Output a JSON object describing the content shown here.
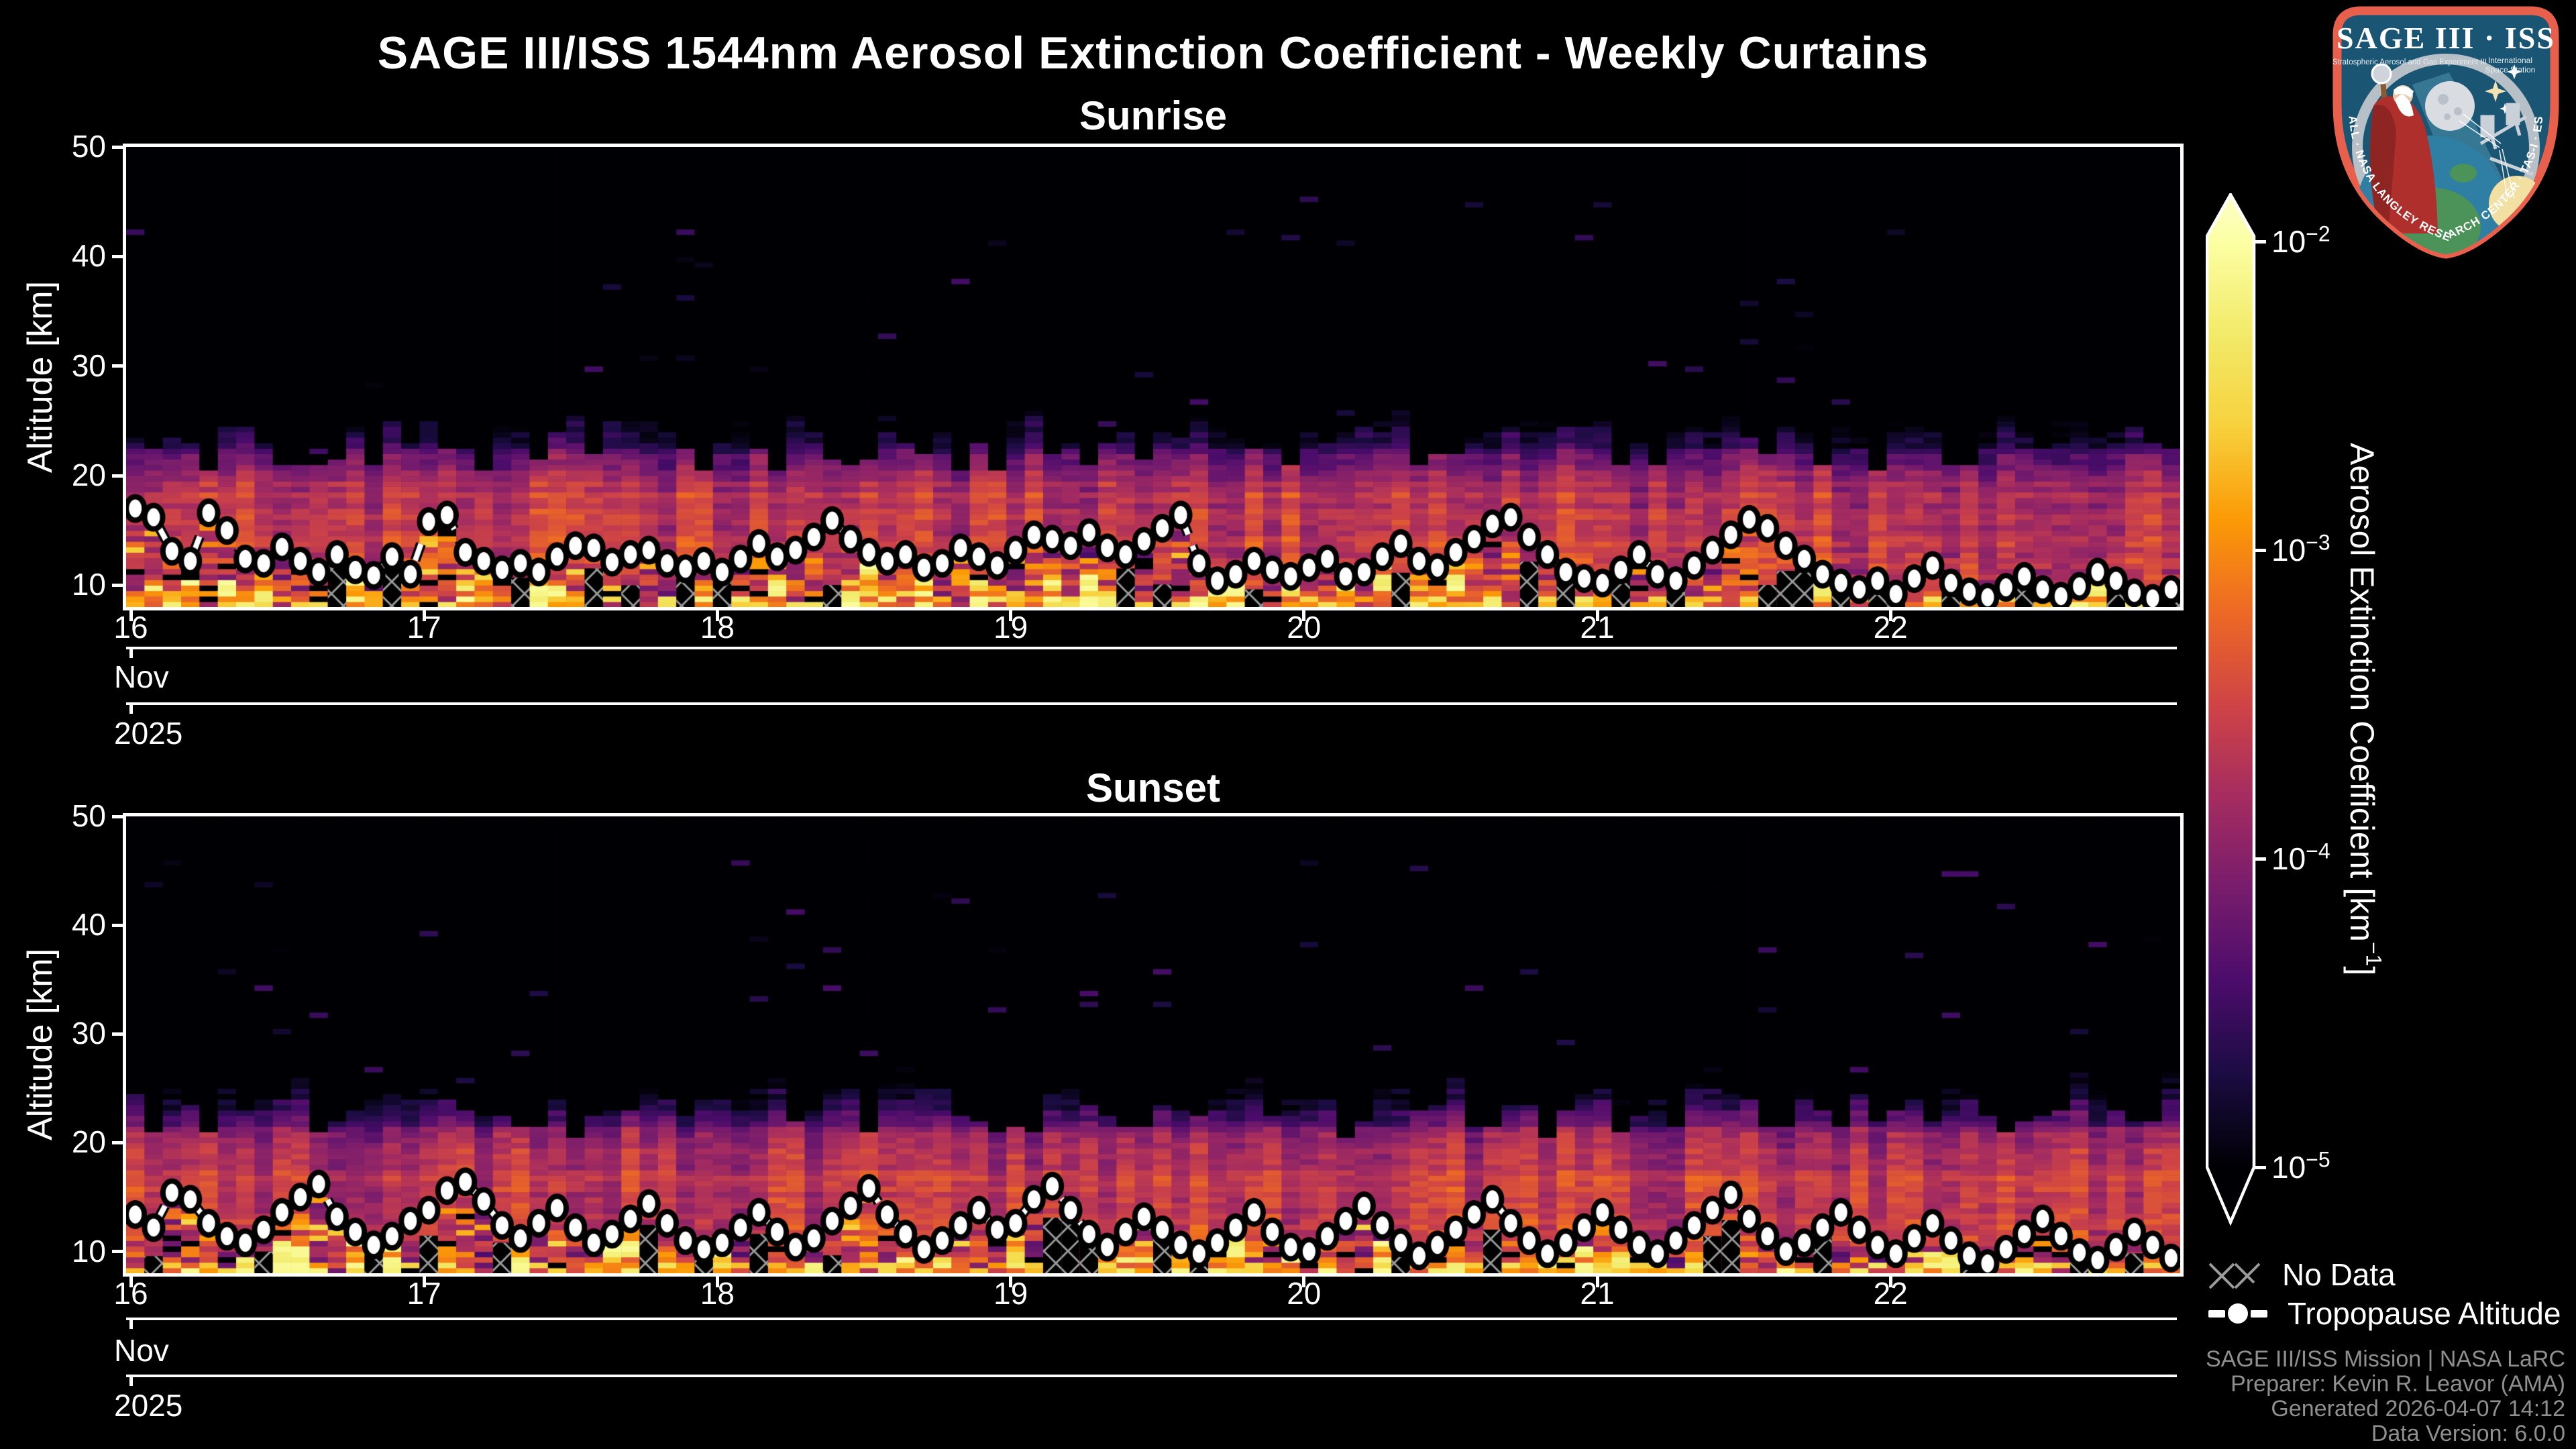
{
  "title": "SAGE III/ISS 1544nm Aerosol Extinction Coefficient - Weekly Curtains",
  "panels": [
    {
      "title": "Sunrise"
    },
    {
      "title": "Sunset"
    }
  ],
  "axes": {
    "y_label": "Altitude [km]",
    "y_ticks": [
      50,
      40,
      30,
      20,
      10
    ],
    "x_ticks": [
      "16",
      "17",
      "18",
      "19",
      "20",
      "21",
      "22"
    ],
    "month": "Nov",
    "year": "2025"
  },
  "colorbar": {
    "label_prefix": "Aerosol Extinction Coefficient [km",
    "label_sup": "−1",
    "label_suffix": "]",
    "ticks": [
      {
        "base": "10",
        "exp": -2
      },
      {
        "base": "10",
        "exp": -3
      },
      {
        "base": "10",
        "exp": -4
      },
      {
        "base": "10",
        "exp": -5
      }
    ]
  },
  "legend": {
    "no_data": "No Data",
    "tropopause": "Tropopause Altitude"
  },
  "attribution": {
    "lines": [
      "SAGE III/ISS Mission | NASA LaRC",
      "Preparer: Kevin R. Leavor (AMA)",
      "Generated 2026-04-07 14:12",
      "Data Version: 6.0.0"
    ]
  },
  "logo": {
    "title": "SAGE III · ISS",
    "subtitle_left": "Stratospheric Aerosol and Gas Experiment III",
    "subtitle_right_1": "International",
    "subtitle_right_2": "Space Station",
    "ring_text": "BALL · NASA LANGLEY RESEARCH CENTER · TAS-I · ESA"
  },
  "colors": {
    "background": "#000000",
    "spine": "#ffffff",
    "text": "#ffffff",
    "attribution_text": "#8f8f8f",
    "hatch": "#9a9a9a",
    "logo_border": "#e8604c",
    "logo_field": "#1a5674",
    "colormap_stops": [
      [
        0.0,
        "#000004"
      ],
      [
        0.1,
        "#1b0c42"
      ],
      [
        0.2,
        "#4b0c6b"
      ],
      [
        0.3,
        "#781c6d"
      ],
      [
        0.4,
        "#a52c60"
      ],
      [
        0.5,
        "#cf4446"
      ],
      [
        0.6,
        "#ed6925"
      ],
      [
        0.7,
        "#fb9a06"
      ],
      [
        0.8,
        "#f7d13d"
      ],
      [
        0.9,
        "#f2ea69"
      ],
      [
        1.0,
        "#fcffa4"
      ]
    ]
  },
  "chart_data": [
    {
      "type": "heatmap",
      "title": "Sunrise",
      "xlabel_days": [
        "16",
        "17",
        "18",
        "19",
        "20",
        "21",
        "22"
      ],
      "x_month": "Nov",
      "x_year": "2025",
      "ylabel": "Altitude [km]",
      "y_range_km": [
        8,
        50
      ],
      "columns_per_day": 16,
      "color_scale": {
        "type": "log",
        "vmin": 1e-05,
        "vmax": 0.01,
        "colormap": "inferno",
        "label": "Aerosol Extinction Coefficient [km^-1]",
        "extend": "both"
      },
      "profile_log10_by_alt_km": [
        [
          8,
          -3.55
        ],
        [
          10,
          -3.6
        ],
        [
          13,
          -3.6
        ],
        [
          16,
          -3.62
        ],
        [
          19,
          -3.7
        ],
        [
          20,
          -3.82
        ],
        [
          21,
          -4.0
        ],
        [
          22,
          -4.3
        ],
        [
          23,
          -4.55
        ],
        [
          24,
          -4.8
        ],
        [
          25,
          -5.0
        ],
        [
          26,
          -5.15
        ],
        [
          28,
          -5.35
        ],
        [
          50,
          -5.45
        ]
      ],
      "no_data_hatch": true,
      "tropopause_altitude_km": [
        17.0,
        16.2,
        13.1,
        12.2,
        16.6,
        15.0,
        12.4,
        12.0,
        13.5,
        12.2,
        11.2,
        12.8,
        11.4,
        10.9,
        12.6,
        11.0,
        15.8,
        16.4,
        13.0,
        12.2,
        11.4,
        12.0,
        11.2,
        12.6,
        13.6,
        13.4,
        12.1,
        12.8,
        13.2,
        12.0,
        11.5,
        12.2,
        11.2,
        12.4,
        13.8,
        12.6,
        13.2,
        14.4,
        15.9,
        14.2,
        13.0,
        12.2,
        12.8,
        11.6,
        12.0,
        13.4,
        12.6,
        11.8,
        13.2,
        14.6,
        14.2,
        13.6,
        14.8,
        13.4,
        12.8,
        14.0,
        15.2,
        16.4,
        12.0,
        10.4,
        11.0,
        12.2,
        11.4,
        10.8,
        11.6,
        12.4,
        10.8,
        11.2,
        12.6,
        13.8,
        12.2,
        11.6,
        13.0,
        14.2,
        15.6,
        16.2,
        14.4,
        12.8,
        11.2,
        10.6,
        10.2,
        11.4,
        12.8,
        11.0,
        10.4,
        11.8,
        13.2,
        14.6,
        16.0,
        15.2,
        13.6,
        12.4,
        11.0,
        10.2,
        9.6,
        10.4,
        9.2,
        10.6,
        11.8,
        10.2,
        9.4,
        8.9,
        9.8,
        10.8,
        9.6,
        9.0,
        9.9,
        11.2,
        10.4,
        9.3,
        8.8,
        9.6
      ]
    },
    {
      "type": "heatmap",
      "title": "Sunset",
      "xlabel_days": [
        "16",
        "17",
        "18",
        "19",
        "20",
        "21",
        "22"
      ],
      "x_month": "Nov",
      "x_year": "2025",
      "ylabel": "Altitude [km]",
      "y_range_km": [
        8,
        50
      ],
      "columns_per_day": 16,
      "color_scale": {
        "type": "log",
        "vmin": 1e-05,
        "vmax": 0.01,
        "colormap": "inferno",
        "label": "Aerosol Extinction Coefficient [km^-1]",
        "extend": "both"
      },
      "profile_log10_by_alt_km": [
        [
          8,
          -3.55
        ],
        [
          10,
          -3.6
        ],
        [
          13,
          -3.6
        ],
        [
          16,
          -3.62
        ],
        [
          19,
          -3.7
        ],
        [
          20,
          -3.82
        ],
        [
          21,
          -4.0
        ],
        [
          22,
          -4.3
        ],
        [
          23,
          -4.55
        ],
        [
          24,
          -4.8
        ],
        [
          25,
          -5.0
        ],
        [
          26,
          -5.15
        ],
        [
          28,
          -5.35
        ],
        [
          50,
          -5.45
        ]
      ],
      "no_data_hatch": true,
      "tropopause_altitude_km": [
        13.4,
        12.2,
        15.4,
        14.8,
        12.6,
        11.4,
        10.8,
        12.0,
        13.6,
        15.0,
        16.2,
        13.2,
        11.8,
        10.6,
        11.4,
        12.8,
        13.8,
        15.6,
        16.4,
        14.6,
        12.4,
        11.2,
        12.6,
        14.0,
        12.2,
        10.8,
        11.6,
        13.0,
        14.4,
        12.6,
        11.0,
        10.2,
        10.8,
        12.2,
        13.6,
        11.8,
        10.4,
        11.2,
        12.8,
        14.2,
        15.8,
        13.4,
        11.6,
        10.2,
        11.0,
        12.4,
        13.8,
        12.0,
        12.6,
        14.8,
        16.0,
        13.8,
        11.6,
        10.4,
        11.8,
        13.2,
        12.0,
        10.6,
        9.8,
        10.8,
        12.2,
        13.6,
        11.8,
        10.4,
        10.0,
        11.4,
        12.8,
        14.2,
        12.4,
        10.8,
        9.6,
        10.6,
        12.0,
        13.4,
        14.8,
        12.6,
        11.0,
        9.8,
        10.8,
        12.2,
        13.6,
        12.0,
        10.6,
        9.8,
        11.0,
        12.4,
        13.8,
        15.2,
        13.0,
        11.4,
        10.0,
        10.8,
        12.2,
        13.6,
        12.0,
        10.6,
        9.8,
        11.2,
        12.6,
        11.0,
        9.6,
        8.9,
        10.2,
        11.6,
        13.0,
        11.4,
        9.9,
        9.2,
        10.4,
        11.8,
        10.6,
        9.4
      ]
    }
  ]
}
